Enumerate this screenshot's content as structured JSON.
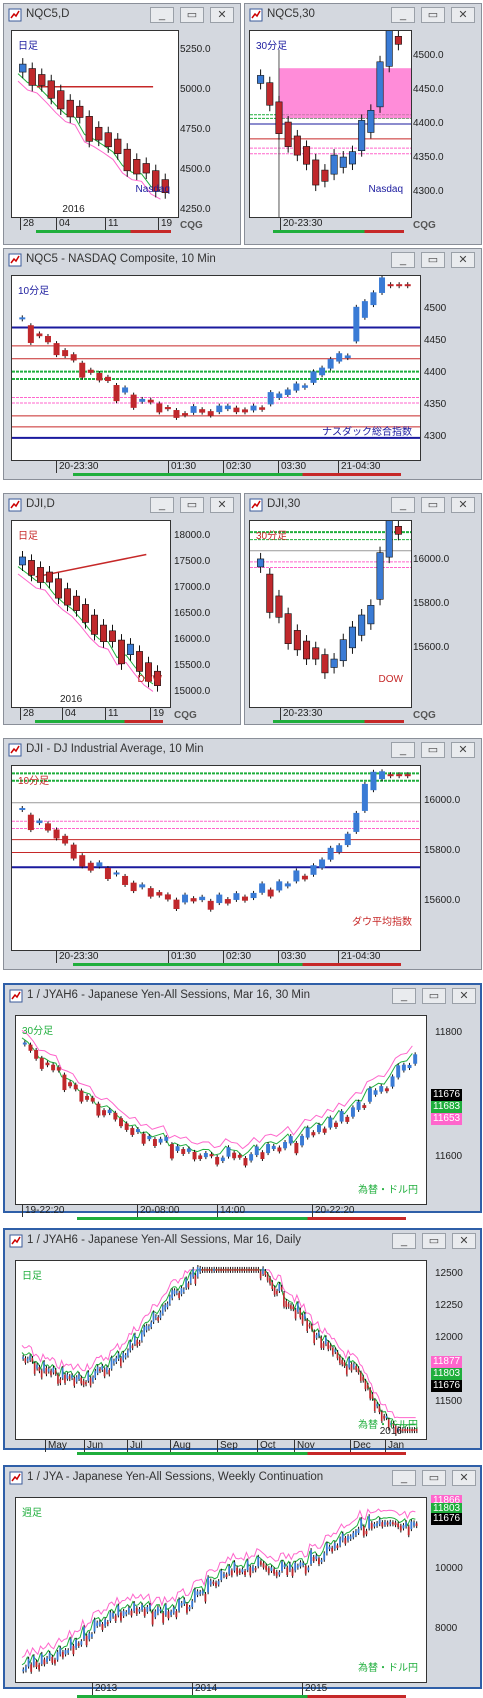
{
  "colors": {
    "up": "#3a7bd5",
    "down": "#c0282c",
    "pink": "#ff66cc",
    "green": "#1fae3c",
    "navy": "#1a1a9e",
    "red": "#c62828"
  },
  "windows": [
    {
      "title": "NQC5,D",
      "period_label": "日足",
      "period_color": "#1a1a9e",
      "watermark": "Nasdaq",
      "watermark_color": "#1a1a9e",
      "prices": [
        "5250.0",
        "5000.0",
        "4750.0",
        "4500.0",
        "4250.0"
      ],
      "xlabels": [
        "28",
        "04",
        "11",
        "19"
      ],
      "year": "2016"
    },
    {
      "title": "NQC5,30",
      "period_label": "30分足",
      "period_color": "#1a1a9e",
      "watermark": "Nasdaq",
      "watermark_color": "#1a1a9e",
      "prices": [
        "4500.0",
        "4450.0",
        "4400.0",
        "4350.0",
        "4300.0"
      ],
      "xlabels": [
        "20-23:30"
      ]
    },
    {
      "title": "NQC5 - NASDAQ Composite, 10 Min",
      "period_label": "10分足",
      "period_color": "#1a1a9e",
      "watermark": "ナスダック総合指数",
      "watermark_color": "#1a1a9e",
      "prices": [
        "4500",
        "4450",
        "4400",
        "4350",
        "4300"
      ],
      "xlabels": [
        "20-23:30",
        "01:30",
        "02:30",
        "03:30",
        "21-04:30"
      ]
    },
    {
      "title": "DJI,D",
      "period_label": "日足",
      "period_color": "#c62828",
      "watermark": "DOW",
      "watermark_color": "#c62828",
      "prices": [
        "18000.0",
        "17500.0",
        "17000.0",
        "16500.0",
        "16000.0",
        "15500.0",
        "15000.0"
      ],
      "xlabels": [
        "28",
        "04",
        "11",
        "19"
      ],
      "year": "2016"
    },
    {
      "title": "DJI,30",
      "period_label": "30分足",
      "period_color": "#c62828",
      "watermark": "DOW",
      "watermark_color": "#c62828",
      "prices": [
        "16000.0",
        "15800.0",
        "15600.0"
      ],
      "xlabels": [
        "20-23:30"
      ]
    },
    {
      "title": "DJI - DJ Industrial Average, 10 Min",
      "period_label": "10分足",
      "period_color": "#c62828",
      "watermark": "ダウ平均指数",
      "watermark_color": "#c62828",
      "prices": [
        "16000.0",
        "15800.0",
        "15600.0"
      ],
      "xlabels": [
        "20-23:30",
        "01:30",
        "02:30",
        "03:30",
        "21-04:30"
      ]
    },
    {
      "title": "1 / JYAH6 - Japanese Yen-All Sessions, Mar 16, 30 Min",
      "period_label": "30分足",
      "period_color": "#1fae3c",
      "watermark": "為替・ドル円",
      "watermark_color": "#1fae3c",
      "prices": [
        "11800",
        "11700",
        "11600"
      ],
      "xlabels": [
        "19-22:20",
        "20-08:00",
        "14:00",
        "20-22:20"
      ],
      "tags": [
        {
          "text": "11676",
          "bg": "#000"
        },
        {
          "text": "11683",
          "bg": "#1fae3c"
        },
        {
          "text": "11653",
          "bg": "#ff66cc"
        }
      ]
    },
    {
      "title": "1 / JYAH6 - Japanese Yen-All Sessions, Mar 16, Daily",
      "period_label": "日足",
      "period_color": "#1fae3c",
      "watermark": "為替・ドル円",
      "watermark_color": "#1fae3c",
      "prices": [
        "12500",
        "12250",
        "12000",
        "11750",
        "11500"
      ],
      "xlabels": [
        "May",
        "Jun",
        "Jul",
        "Aug",
        "Sep",
        "Oct",
        "Nov",
        "Dec",
        "Jan"
      ],
      "year": "2016",
      "tags": [
        {
          "text": "11877",
          "bg": "#ff66cc"
        },
        {
          "text": "11803",
          "bg": "#1fae3c"
        },
        {
          "text": "11676",
          "bg": "#000"
        }
      ]
    },
    {
      "title": "1 / JYA - Japanese Yen-All Sessions, Weekly Continuation",
      "period_label": "週足",
      "period_color": "#1fae3c",
      "watermark": "為替・ドル円",
      "watermark_color": "#1fae3c",
      "prices": [
        "10000",
        "8000"
      ],
      "xlabels": [
        "2013",
        "2014",
        "2015"
      ],
      "tags": [
        {
          "text": "11866",
          "bg": "#ff66cc"
        },
        {
          "text": "11803",
          "bg": "#1fae3c"
        },
        {
          "text": "11676",
          "bg": "#000"
        }
      ]
    }
  ],
  "brand": "CQG"
}
